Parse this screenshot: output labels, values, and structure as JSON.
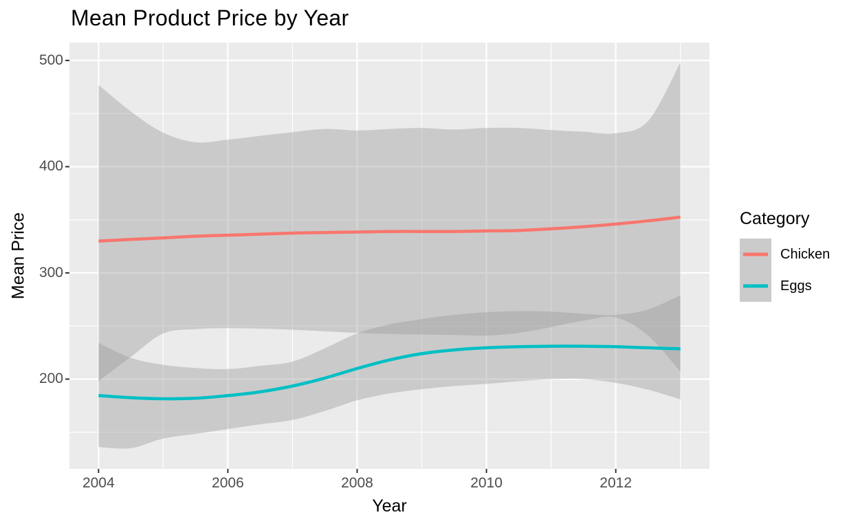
{
  "figure": {
    "title": "Mean Product Price by Year"
  },
  "chart_data": {
    "type": "line",
    "title": "Mean Product Price by Year",
    "xlabel": "Year",
    "ylabel": "Mean Price",
    "grid": true,
    "panel_bg": "#EBEBEB",
    "grid_color": "#FFFFFF",
    "tick_mark_color": "#333333",
    "tick_label_color": "#4D4D4D",
    "ribbon_color": "#999999",
    "ribbon_opacity": 0.4,
    "xlim": [
      2003.55,
      2013.45
    ],
    "ylim": [
      115.5,
      516.8
    ],
    "x_ticks": {
      "values": [
        2004,
        2006,
        2008,
        2010,
        2012
      ],
      "labels": [
        "2004",
        "2006",
        "2008",
        "2010",
        "2012"
      ]
    },
    "y_ticks": {
      "values": [
        200,
        300,
        400,
        500
      ],
      "labels": [
        "200",
        "300",
        "400",
        "500"
      ]
    },
    "x_minor": [
      2005,
      2007,
      2009,
      2011,
      2013
    ],
    "y_minor": [
      150,
      250,
      350,
      450
    ],
    "legend": {
      "title": "Category",
      "position": "right"
    },
    "x": [
      2004,
      2004.5,
      2005,
      2005.5,
      2006,
      2006.5,
      2007,
      2007.5,
      2008,
      2008.5,
      2009,
      2009.5,
      2010,
      2010.5,
      2011,
      2011.5,
      2012,
      2012.5,
      2013
    ],
    "series": [
      {
        "name": "Chicken",
        "color": "#F8766D",
        "values": [
          330,
          331.5,
          333,
          334.5,
          335.5,
          336.5,
          337.5,
          338,
          338.5,
          339,
          339,
          339,
          339.5,
          340,
          341.5,
          343.5,
          346,
          349,
          352.5
        ],
        "ci_upper": [
          477,
          452,
          432,
          423,
          425.5,
          429,
          432.5,
          435.5,
          434,
          435.5,
          436.5,
          435,
          436.5,
          436.5,
          434.5,
          433,
          431.5,
          443,
          498
        ],
        "ci_lower": [
          198,
          221,
          243,
          247,
          248,
          247.5,
          246.5,
          245,
          243.5,
          242.5,
          242,
          241.5,
          241,
          243.5,
          249,
          255,
          258,
          241,
          207
        ]
      },
      {
        "name": "Eggs",
        "color": "#00BFC4",
        "values": [
          184.5,
          182.5,
          181.5,
          182,
          184.5,
          188,
          193.5,
          201,
          210,
          218,
          224,
          227.5,
          229.5,
          230.5,
          231,
          231,
          230.5,
          229.5,
          228.5
        ],
        "ci_upper": [
          234,
          220,
          213.5,
          210.5,
          209.5,
          212.5,
          216.5,
          229,
          243,
          251.5,
          256.5,
          260.5,
          263,
          264,
          263.5,
          261.5,
          260.5,
          265.5,
          279
        ],
        "ci_lower": [
          136,
          135,
          144,
          148.5,
          153,
          157.5,
          161.5,
          170,
          180,
          186.5,
          190.5,
          193.5,
          195.5,
          198,
          200,
          200,
          196.5,
          190,
          181
        ]
      }
    ]
  }
}
